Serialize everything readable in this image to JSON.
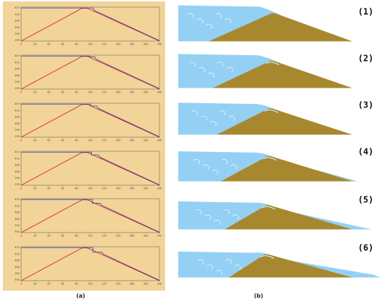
{
  "figure": {
    "panel_a_label": "(a)",
    "panel_b_label": "(b)"
  },
  "colors": {
    "panel_a_background": "#f2d398",
    "bed_line": "#d01818",
    "water_line": "#3a36b8",
    "water": "#8ecdf3",
    "sand": "#a8882e"
  },
  "plots": {
    "x_ticks": [
      "0",
      "20",
      "40",
      "60",
      "80",
      "100",
      "120",
      "140",
      "160",
      "180",
      "200"
    ],
    "y_ticks": [
      "615",
      "610",
      "605",
      "600",
      "595",
      "590"
    ]
  },
  "frames": [
    {
      "label": "(1)"
    },
    {
      "label": "(2)"
    },
    {
      "label": "(3)"
    },
    {
      "label": "(4)"
    },
    {
      "label": "(5)"
    },
    {
      "label": "(6)"
    }
  ]
}
